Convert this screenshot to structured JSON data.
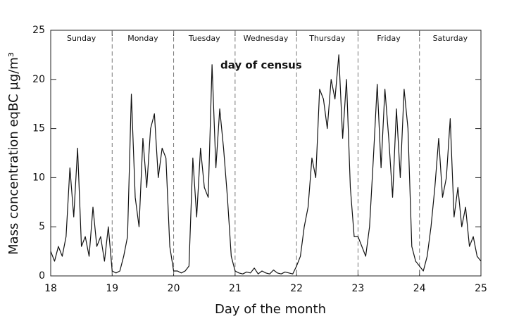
{
  "chart_data": {
    "type": "line",
    "xlabel": "Day of the month",
    "ylabel": "Mass concentration eqBC  µg/m³",
    "annotation": {
      "text": "day of census",
      "color": "#c00000"
    },
    "day_labels": [
      "Sunday",
      "Monday",
      "Tuesday",
      "Wednesday",
      "Thursday",
      "Friday",
      "Saturday"
    ],
    "day_dividers": "dashed",
    "xlim": [
      18,
      25
    ],
    "ylim": [
      0,
      25
    ],
    "xticks": [
      18,
      19,
      20,
      21,
      22,
      23,
      24,
      25
    ],
    "yticks": [
      0,
      5,
      10,
      15,
      20,
      25
    ],
    "series": [
      {
        "color": "#111111",
        "x": [
          18,
          18.0625,
          18.125,
          18.1875,
          18.25,
          18.3125,
          18.375,
          18.4375,
          18.5,
          18.5625,
          18.625,
          18.6875,
          18.75,
          18.8125,
          18.875,
          18.9375,
          19,
          19.0625,
          19.125,
          19.1875,
          19.25,
          19.3125,
          19.375,
          19.4375,
          19.5,
          19.5625,
          19.625,
          19.6875,
          19.75,
          19.8125,
          19.875,
          19.9375,
          20,
          20.0625,
          20.125,
          20.1875,
          20.25,
          20.3125,
          20.375,
          20.4375,
          20.5,
          20.5625,
          20.625,
          20.6875,
          20.75,
          20.8125,
          20.875,
          20.9375,
          21,
          21.0625,
          21.125,
          21.1875,
          21.25,
          21.3125,
          21.375,
          21.4375,
          21.5,
          21.5625,
          21.625,
          21.6875,
          21.75,
          21.8125,
          21.875,
          21.9375,
          22,
          22.0625,
          22.125,
          22.1875,
          22.25,
          22.3125,
          22.375,
          22.4375,
          22.5,
          22.5625,
          22.625,
          22.6875,
          22.75,
          22.8125,
          22.875,
          22.9375,
          23,
          23.0625,
          23.125,
          23.1875,
          23.25,
          23.3125,
          23.375,
          23.4375,
          23.5,
          23.5625,
          23.625,
          23.6875,
          23.75,
          23.8125,
          23.875,
          23.9375,
          24,
          24.0625,
          24.125,
          24.1875,
          24.25,
          24.3125,
          24.375,
          24.4375,
          24.5,
          24.5625,
          24.625,
          24.6875,
          24.75,
          24.8125,
          24.875,
          24.9375,
          25
        ],
        "values": [
          2.5,
          1.5,
          3,
          2,
          4,
          11,
          6,
          13,
          3,
          4,
          2,
          7,
          3,
          4,
          1.5,
          5,
          0.5,
          0.3,
          0.5,
          2,
          4,
          18.5,
          8,
          5,
          14,
          9,
          15,
          16.5,
          10,
          13,
          12,
          3,
          0.5,
          0.5,
          0.3,
          0.5,
          1,
          12,
          6,
          13,
          9,
          8,
          21.5,
          11,
          17,
          13,
          8,
          2,
          0.5,
          0.3,
          0.2,
          0.4,
          0.3,
          0.8,
          0.2,
          0.5,
          0.3,
          0.2,
          0.6,
          0.3,
          0.2,
          0.4,
          0.3,
          0.2,
          1,
          2,
          5,
          7,
          12,
          10,
          19,
          18,
          15,
          20,
          18,
          22.5,
          14,
          20,
          9,
          4,
          4,
          3,
          2,
          5,
          12,
          19.5,
          11,
          19,
          14,
          8,
          17,
          10,
          19,
          15,
          3,
          1.5,
          1,
          0.5,
          2,
          5,
          9,
          14,
          8,
          10,
          16,
          6,
          9,
          5,
          7,
          3,
          4,
          2,
          1.5
        ]
      }
    ]
  }
}
